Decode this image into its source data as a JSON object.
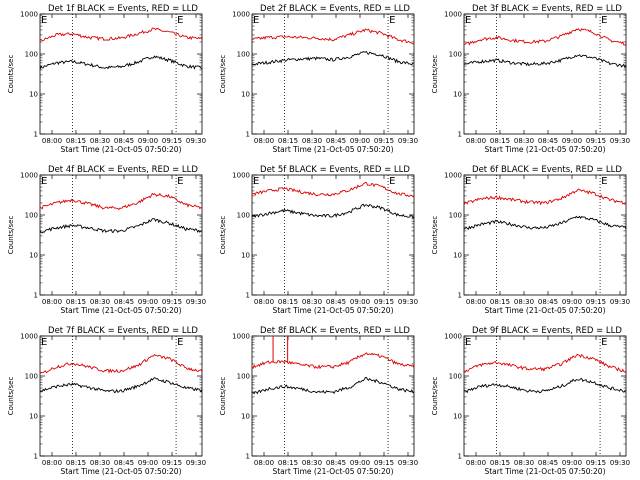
{
  "colors": {
    "events": "#000000",
    "lld": "#dd0000",
    "background": "#ffffff"
  },
  "chart_data": [
    {
      "type": "line",
      "title": "Det 1f BLACK = Events, RED = LLD",
      "xlabel": "Start Time (21-Oct-05 07:50:20)",
      "ylabel": "Counts/sec",
      "yscale": "log",
      "ylim": [
        1,
        1000
      ],
      "xlim": [
        0,
        100
      ],
      "xtick_labels": [
        "08:00",
        "08:15",
        "08:30",
        "08:45",
        "09:00",
        "09:15",
        "09:30"
      ],
      "ytick_labels": [
        "1",
        "10",
        "100",
        "1000"
      ],
      "annotations": [
        "E",
        "E"
      ],
      "vlines": [
        20,
        84
      ],
      "series": [
        {
          "name": "Events",
          "color": "#000000",
          "x": [
            0,
            10,
            20,
            30,
            40,
            50,
            60,
            70,
            80,
            90,
            100
          ],
          "values": [
            45,
            60,
            65,
            55,
            45,
            48,
            62,
            88,
            70,
            50,
            45
          ]
        },
        {
          "name": "LLD",
          "color": "#dd0000",
          "x": [
            0,
            10,
            20,
            30,
            40,
            50,
            60,
            70,
            80,
            90,
            100
          ],
          "values": [
            210,
            300,
            320,
            260,
            240,
            250,
            320,
            420,
            350,
            260,
            240
          ]
        }
      ]
    },
    {
      "type": "line",
      "title": "Det 2f BLACK = Events, RED = LLD",
      "xlabel": "Start Time (21-Oct-05 07:50:20)",
      "ylabel": "Counts/sec",
      "yscale": "log",
      "ylim": [
        1,
        1000
      ],
      "xlim": [
        0,
        100
      ],
      "xtick_labels": [
        "08:00",
        "08:15",
        "08:30",
        "08:45",
        "09:00",
        "09:15",
        "09:30"
      ],
      "ytick_labels": [
        "1",
        "10",
        "100",
        "1000"
      ],
      "annotations": [
        "E",
        "E"
      ],
      "vlines": [
        20,
        84
      ],
      "series": [
        {
          "name": "Events",
          "color": "#000000",
          "x": [
            0,
            10,
            20,
            30,
            40,
            50,
            60,
            70,
            80,
            90,
            100
          ],
          "values": [
            55,
            62,
            70,
            75,
            78,
            72,
            85,
            110,
            95,
            65,
            55
          ]
        },
        {
          "name": "LLD",
          "color": "#dd0000",
          "x": [
            0,
            10,
            20,
            30,
            40,
            50,
            60,
            70,
            80,
            90,
            100
          ],
          "values": [
            230,
            260,
            270,
            260,
            250,
            230,
            300,
            400,
            330,
            230,
            190
          ]
        }
      ]
    },
    {
      "type": "line",
      "title": "Det 3f BLACK = Events, RED = LLD",
      "xlabel": "Start Time (21-Oct-05 07:50:20)",
      "ylabel": "Counts/sec",
      "yscale": "log",
      "ylim": [
        1,
        1000
      ],
      "xlim": [
        0,
        100
      ],
      "xtick_labels": [
        "08:00",
        "08:15",
        "08:30",
        "08:45",
        "09:00",
        "09:15",
        "09:30"
      ],
      "ytick_labels": [
        "1",
        "10",
        "100",
        "1000"
      ],
      "annotations": [
        "E",
        "E"
      ],
      "vlines": [
        20,
        84
      ],
      "series": [
        {
          "name": "Events",
          "color": "#000000",
          "x": [
            0,
            10,
            20,
            30,
            40,
            50,
            60,
            70,
            80,
            90,
            100
          ],
          "values": [
            55,
            65,
            70,
            60,
            55,
            58,
            70,
            95,
            80,
            58,
            50
          ]
        },
        {
          "name": "LLD",
          "color": "#dd0000",
          "x": [
            0,
            10,
            20,
            30,
            40,
            50,
            60,
            70,
            80,
            90,
            100
          ],
          "values": [
            170,
            230,
            260,
            220,
            200,
            210,
            280,
            430,
            350,
            220,
            180
          ]
        }
      ]
    },
    {
      "type": "line",
      "title": "Det 4f BLACK = Events, RED = LLD",
      "xlabel": "Start Time (21-Oct-05 07:50:20)",
      "ylabel": "Counts/sec",
      "yscale": "log",
      "ylim": [
        1,
        1000
      ],
      "xlim": [
        0,
        100
      ],
      "xtick_labels": [
        "08:00",
        "08:15",
        "08:30",
        "08:45",
        "09:00",
        "09:15",
        "09:30"
      ],
      "ytick_labels": [
        "1",
        "10",
        "100",
        "1000"
      ],
      "annotations": [
        "E",
        "E"
      ],
      "vlines": [
        20,
        84
      ],
      "series": [
        {
          "name": "Events",
          "color": "#000000",
          "x": [
            0,
            10,
            20,
            30,
            40,
            50,
            60,
            70,
            80,
            90,
            100
          ],
          "values": [
            38,
            48,
            55,
            48,
            40,
            40,
            52,
            78,
            62,
            45,
            40
          ]
        },
        {
          "name": "LLD",
          "color": "#dd0000",
          "x": [
            0,
            10,
            20,
            30,
            40,
            50,
            60,
            70,
            80,
            90,
            100
          ],
          "values": [
            150,
            200,
            240,
            190,
            150,
            150,
            200,
            330,
            290,
            180,
            150
          ]
        }
      ]
    },
    {
      "type": "line",
      "title": "Det 5f BLACK = Events, RED = LLD",
      "xlabel": "Start Time (21-Oct-05 07:50:20)",
      "ylabel": "Counts/sec",
      "yscale": "log",
      "ylim": [
        1,
        1000
      ],
      "xlim": [
        0,
        100
      ],
      "xtick_labels": [
        "08:00",
        "08:15",
        "08:30",
        "08:45",
        "09:00",
        "09:15",
        "09:30"
      ],
      "ytick_labels": [
        "1",
        "10",
        "100",
        "1000"
      ],
      "annotations": [
        "E",
        "E"
      ],
      "vlines": [
        20,
        84
      ],
      "series": [
        {
          "name": "Events",
          "color": "#000000",
          "x": [
            0,
            10,
            20,
            30,
            40,
            50,
            60,
            70,
            80,
            90,
            100
          ],
          "values": [
            90,
            110,
            130,
            110,
            95,
            95,
            120,
            180,
            150,
            100,
            90
          ]
        },
        {
          "name": "LLD",
          "color": "#dd0000",
          "x": [
            0,
            10,
            20,
            30,
            40,
            50,
            60,
            70,
            80,
            90,
            100
          ],
          "values": [
            330,
            400,
            460,
            380,
            330,
            330,
            420,
            620,
            510,
            340,
            300
          ]
        }
      ]
    },
    {
      "type": "line",
      "title": "Det 6f BLACK = Events, RED = LLD",
      "xlabel": "Start Time (21-Oct-05 07:50:20)",
      "ylabel": "Counts/sec",
      "yscale": "log",
      "ylim": [
        1,
        1000
      ],
      "xlim": [
        0,
        100
      ],
      "xtick_labels": [
        "08:00",
        "08:15",
        "08:30",
        "08:45",
        "09:00",
        "09:15",
        "09:30"
      ],
      "ytick_labels": [
        "1",
        "10",
        "100",
        "1000"
      ],
      "annotations": [
        "E",
        "E"
      ],
      "vlines": [
        20,
        84
      ],
      "series": [
        {
          "name": "Events",
          "color": "#000000",
          "x": [
            0,
            10,
            20,
            30,
            40,
            50,
            60,
            70,
            80,
            90,
            100
          ],
          "values": [
            45,
            58,
            68,
            58,
            48,
            48,
            62,
            92,
            76,
            55,
            48
          ]
        },
        {
          "name": "LLD",
          "color": "#dd0000",
          "x": [
            0,
            10,
            20,
            30,
            40,
            50,
            60,
            70,
            80,
            90,
            100
          ],
          "values": [
            190,
            250,
            280,
            240,
            210,
            200,
            260,
            420,
            350,
            240,
            200
          ]
        }
      ]
    },
    {
      "type": "line",
      "title": "Det 7f BLACK = Events, RED = LLD",
      "xlabel": "Start Time (21-Oct-05 07:50:20)",
      "ylabel": "Counts/sec",
      "yscale": "log",
      "ylim": [
        1,
        1000
      ],
      "xlim": [
        0,
        100
      ],
      "xtick_labels": [
        "08:00",
        "08:15",
        "08:30",
        "08:45",
        "09:00",
        "09:15",
        "09:30"
      ],
      "ytick_labels": [
        "1",
        "10",
        "100",
        "1000"
      ],
      "annotations": [
        "E",
        "E"
      ],
      "vlines": [
        20,
        84
      ],
      "series": [
        {
          "name": "Events",
          "color": "#000000",
          "x": [
            0,
            10,
            20,
            30,
            40,
            50,
            60,
            70,
            80,
            90,
            100
          ],
          "values": [
            42,
            55,
            62,
            52,
            42,
            42,
            55,
            85,
            70,
            50,
            44
          ]
        },
        {
          "name": "LLD",
          "color": "#dd0000",
          "x": [
            0,
            10,
            20,
            30,
            40,
            50,
            60,
            70,
            80,
            90,
            100
          ],
          "values": [
            110,
            170,
            210,
            170,
            135,
            135,
            180,
            330,
            270,
            160,
            130
          ]
        }
      ]
    },
    {
      "type": "line",
      "title": "Det 8f BLACK = Events, RED = LLD",
      "xlabel": "Start Time (21-Oct-05 07:50:20)",
      "ylabel": "Counts/sec",
      "yscale": "log",
      "ylim": [
        1,
        1000
      ],
      "xlim": [
        0,
        100
      ],
      "xtick_labels": [
        "08:00",
        "08:15",
        "08:30",
        "08:45",
        "09:00",
        "09:15",
        "09:30"
      ],
      "ytick_labels": [
        "1",
        "10",
        "100",
        "1000"
      ],
      "annotations": [],
      "vlines": [
        20,
        84
      ],
      "spikes": [
        {
          "x": 13,
          "value": 1000,
          "color": "#dd0000"
        },
        {
          "x": 22,
          "value": 1000,
          "color": "#dd0000"
        }
      ],
      "series": [
        {
          "name": "Events",
          "color": "#000000",
          "x": [
            0,
            10,
            20,
            30,
            40,
            50,
            60,
            70,
            80,
            90,
            100
          ],
          "values": [
            35,
            48,
            55,
            48,
            40,
            40,
            52,
            85,
            70,
            48,
            40
          ]
        },
        {
          "name": "LLD",
          "color": "#dd0000",
          "x": [
            0,
            10,
            20,
            30,
            40,
            50,
            60,
            70,
            80,
            90,
            100
          ],
          "values": [
            170,
            220,
            230,
            190,
            170,
            170,
            220,
            370,
            310,
            200,
            170
          ]
        }
      ]
    },
    {
      "type": "line",
      "title": "Det 9f BLACK = Events, RED = LLD",
      "xlabel": "Start Time (21-Oct-05 07:50:20)",
      "ylabel": "Counts/sec",
      "yscale": "log",
      "ylim": [
        1,
        1000
      ],
      "xlim": [
        0,
        100
      ],
      "xtick_labels": [
        "08:00",
        "08:15",
        "08:30",
        "08:45",
        "09:00",
        "09:15",
        "09:30"
      ],
      "ytick_labels": [
        "1",
        "10",
        "100",
        "1000"
      ],
      "annotations": [
        "E",
        "E"
      ],
      "vlines": [
        20,
        84
      ],
      "series": [
        {
          "name": "Events",
          "color": "#000000",
          "x": [
            0,
            10,
            20,
            30,
            40,
            50,
            60,
            70,
            80,
            90,
            100
          ],
          "values": [
            40,
            55,
            62,
            52,
            42,
            42,
            55,
            85,
            70,
            50,
            42
          ]
        },
        {
          "name": "LLD",
          "color": "#dd0000",
          "x": [
            0,
            10,
            20,
            30,
            40,
            50,
            60,
            70,
            80,
            90,
            100
          ],
          "values": [
            130,
            190,
            220,
            180,
            150,
            150,
            200,
            340,
            270,
            170,
            130
          ]
        }
      ]
    }
  ]
}
